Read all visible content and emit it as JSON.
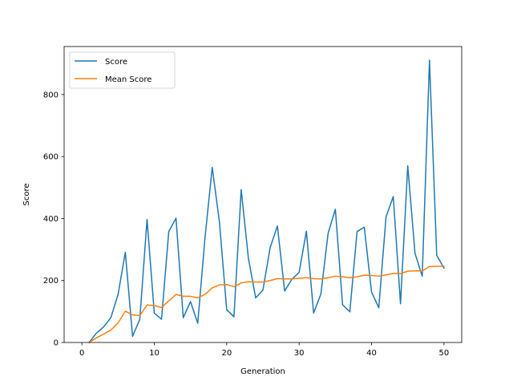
{
  "chart_data": {
    "type": "line",
    "xlabel": "Generation",
    "ylabel": "Score",
    "xlim": [
      -2.45,
      52.45
    ],
    "ylim": [
      0,
      955
    ],
    "xticks": [
      0,
      10,
      20,
      30,
      40,
      50
    ],
    "yticks": [
      0,
      200,
      400,
      600,
      800
    ],
    "grid": false,
    "legend_position": "top-left",
    "x": [
      1,
      2,
      3,
      4,
      5,
      6,
      7,
      8,
      9,
      10,
      11,
      12,
      13,
      14,
      15,
      16,
      17,
      18,
      19,
      20,
      21,
      22,
      23,
      24,
      25,
      26,
      27,
      28,
      29,
      30,
      31,
      32,
      33,
      34,
      35,
      36,
      37,
      38,
      39,
      40,
      41,
      42,
      43,
      44,
      45,
      46,
      47,
      48,
      49,
      50
    ],
    "series": [
      {
        "name": "Score",
        "color": "#1f77b4",
        "values": [
          0,
          30,
          50,
          80,
          155,
          291,
          20,
          75,
          397,
          95,
          75,
          358,
          401,
          80,
          132,
          62,
          337,
          565,
          388,
          106,
          83,
          493,
          271,
          144,
          169,
          306,
          376,
          166,
          204,
          226,
          359,
          95,
          156,
          352,
          430,
          122,
          99,
          358,
          372,
          163,
          112,
          405,
          471,
          125,
          570,
          288,
          214,
          911,
          281,
          240
        ]
      },
      {
        "name": "Mean Score",
        "color": "#ff7f0e",
        "values": [
          0,
          15,
          27,
          40,
          63,
          101,
          89,
          87,
          121,
          119,
          113,
          134,
          155,
          149,
          149,
          144,
          155,
          176,
          186,
          187,
          180,
          192,
          196,
          195,
          195,
          200,
          206,
          205,
          205,
          207,
          209,
          206,
          205,
          209,
          214,
          212,
          209,
          212,
          217,
          216,
          214,
          218,
          223,
          222,
          230,
          231,
          231,
          245,
          246,
          246
        ]
      }
    ]
  }
}
